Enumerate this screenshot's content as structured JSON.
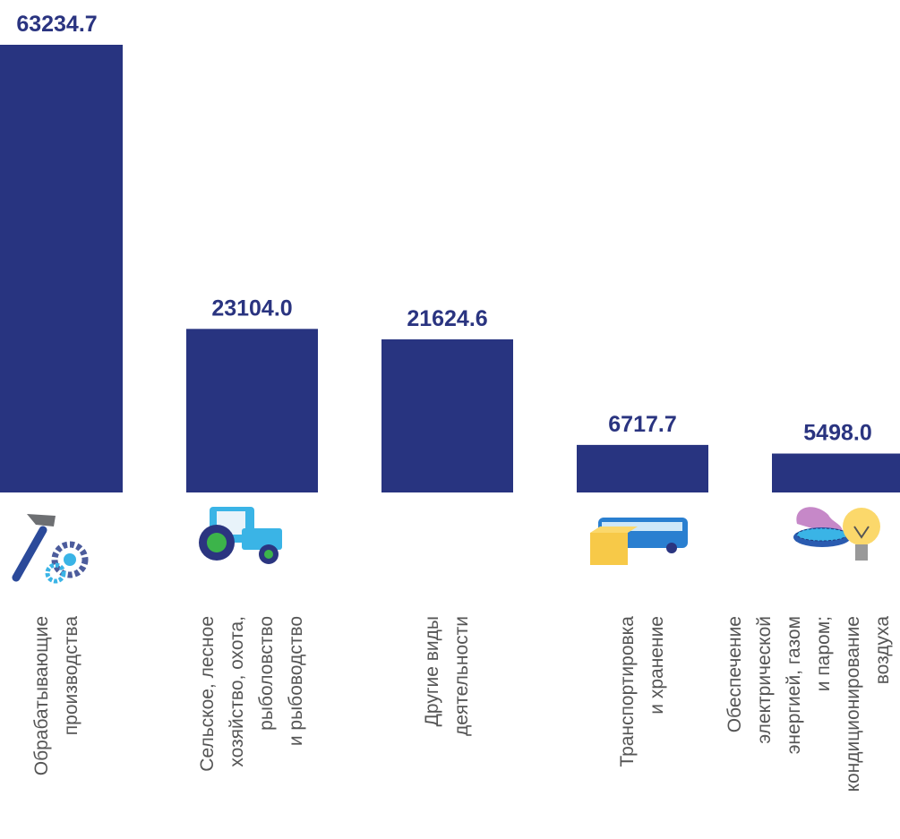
{
  "chart_data": {
    "type": "bar",
    "categories": [
      "Обрабатывающие\nпроизводства",
      "Сельское, лесное\nхозяйство, охота,\nрыболовство\nи рыбоводство",
      "Другие виды\nдеятельности",
      "Транспортировка\nи хранение",
      "Обеспечение\nэлектрической\nэнергией, газом\nи паром;\nкондиционирование\nвоздуха"
    ],
    "values": [
      63234.7,
      23104.0,
      21624.6,
      6717.7,
      5498.0
    ],
    "value_labels": [
      "63234.7",
      "23104.0",
      "21624.6",
      "6717.7",
      "5498.0"
    ],
    "color": "#283480"
  }
}
